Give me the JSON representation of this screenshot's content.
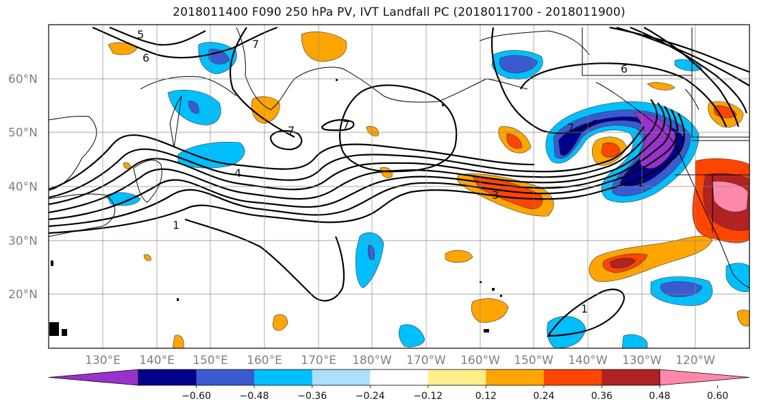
{
  "title": "2018011400 F090 250 hPa PV, IVT Landfall PC (2018011700 - 2018011900)",
  "map": {
    "lat_labels": [
      "60°N",
      "50°N",
      "40°N",
      "30°N",
      "20°N"
    ],
    "lon_labels": [
      "130°E",
      "140°E",
      "150°E",
      "160°E",
      "170°E",
      "180°W",
      "170°W",
      "160°W",
      "150°W",
      "140°W",
      "130°W",
      "120°W"
    ],
    "grid": true,
    "pv_contour_labels": [
      "5",
      "6",
      "7",
      "7",
      "7",
      "6",
      "7",
      "4",
      "1",
      "3",
      "1",
      "1"
    ]
  },
  "colorbar": {
    "ticks": [
      "−0.60",
      "−0.48",
      "−0.36",
      "−0.24",
      "−0.12",
      "0.12",
      "0.24",
      "0.36",
      "0.48",
      "0.60"
    ],
    "colors": [
      "#9932CC",
      "#00008B",
      "#3A5BD0",
      "#00BFFF",
      "#ADDFFF",
      "#FFFFFF",
      "#FFEE8A",
      "#FFA500",
      "#FF4500",
      "#B22222",
      "#FF88AA"
    ]
  }
}
